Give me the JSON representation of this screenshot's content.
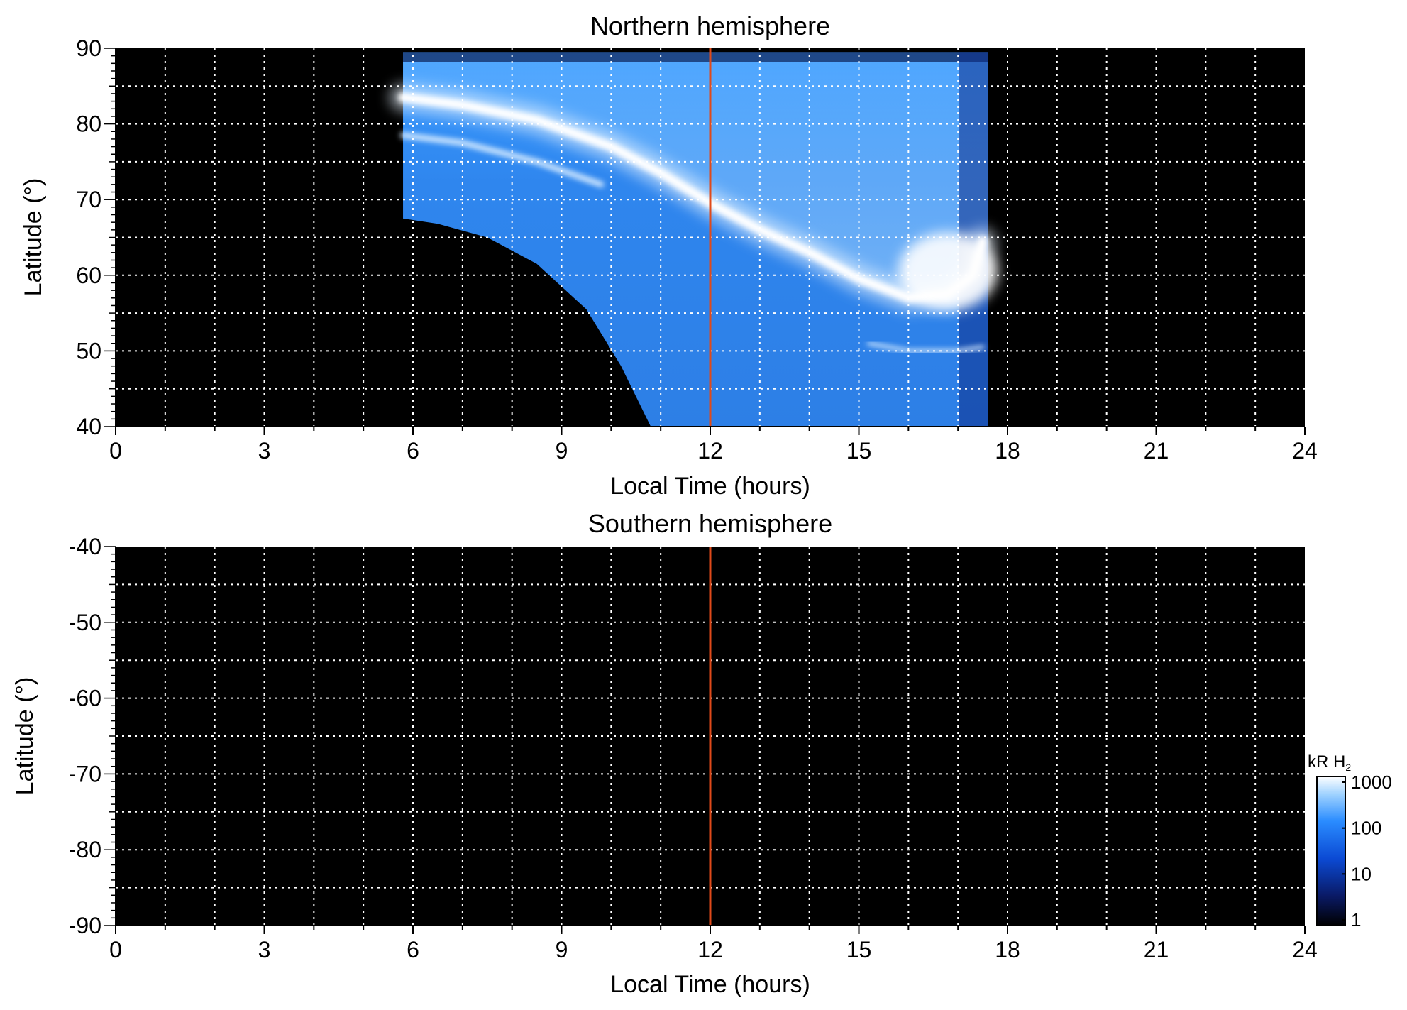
{
  "chart_data": [
    {
      "type": "heatmap",
      "title": "Northern hemisphere",
      "xlabel": "Local Time (hours)",
      "ylabel": "Latitude (°)",
      "xlim": [
        0,
        24
      ],
      "ylim": [
        40,
        90
      ],
      "x_ticks": [
        "0",
        "3",
        "6",
        "9",
        "12",
        "15",
        "18",
        "21",
        "24"
      ],
      "y_ticks": [
        "90",
        "80",
        "70",
        "60",
        "50",
        "40"
      ],
      "grid": true,
      "background": "#000000",
      "noon_marker": {
        "x": 12,
        "color": "#e04a1a"
      },
      "coverage": {
        "lt_start": 5.8,
        "lt_end": 17.6,
        "lat_top": 89.5,
        "lower_boundary": [
          [
            5.8,
            67.5
          ],
          [
            6.5,
            66.8
          ],
          [
            7.5,
            65.0
          ],
          [
            8.5,
            61.5
          ],
          [
            9.5,
            55.5
          ],
          [
            10.2,
            48.0
          ],
          [
            10.8,
            40.0
          ]
        ]
      },
      "features": {
        "main_oval": [
          [
            5.8,
            83.5
          ],
          [
            7.0,
            82.5
          ],
          [
            8.5,
            80.5
          ],
          [
            10.0,
            77.0
          ],
          [
            11.0,
            73.5
          ],
          [
            12.0,
            69.5
          ],
          [
            13.0,
            66.0
          ],
          [
            14.0,
            63.0
          ],
          [
            15.0,
            59.5
          ],
          [
            16.0,
            57.0
          ],
          [
            16.8,
            57.5
          ],
          [
            17.3,
            60.0
          ],
          [
            17.5,
            64.5
          ]
        ],
        "outer_arc": [
          [
            5.8,
            78.5
          ],
          [
            7.0,
            77.5
          ],
          [
            8.5,
            75.0
          ],
          [
            9.8,
            72.0
          ]
        ],
        "secondary_arc": [
          [
            15.2,
            51.0
          ],
          [
            16.0,
            50.0
          ],
          [
            17.0,
            50.0
          ],
          [
            17.5,
            50.5
          ]
        ]
      }
    },
    {
      "type": "heatmap",
      "title": "Southern hemisphere",
      "xlabel": "Local Time (hours)",
      "ylabel": "Latitude (°)",
      "xlim": [
        0,
        24
      ],
      "ylim": [
        -90,
        -40
      ],
      "x_ticks": [
        "0",
        "3",
        "6",
        "9",
        "12",
        "15",
        "18",
        "21",
        "24"
      ],
      "y_ticks": [
        "-40",
        "-50",
        "-60",
        "-70",
        "-80",
        "-90"
      ],
      "grid": true,
      "background": "#000000",
      "noon_marker": {
        "x": 12,
        "color": "#e04a1a"
      }
    }
  ],
  "colorbar": {
    "unit_main": "kR H",
    "unit_sub": "2",
    "scale": "log",
    "ticks": [
      "1000",
      "100",
      "10",
      "1"
    ],
    "colors": [
      "#000000",
      "#0a1a66",
      "#0b4ad4",
      "#2a8cff",
      "#9fd2ff",
      "#ffffff"
    ]
  }
}
